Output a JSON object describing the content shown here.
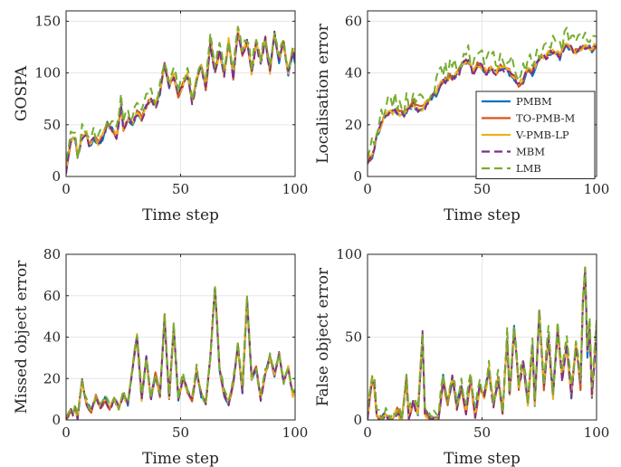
{
  "colors": {
    "PMBM": "#0072BD",
    "TO-PMB-M": "#D95319",
    "V-PMB-LP": "#EDB120",
    "MBM": "#7E2F8E",
    "LMB": "#77AC30",
    "grid": "#e6e6e6",
    "axis": "#262626"
  },
  "chart_data": [
    {
      "type": "line",
      "title": "",
      "xlabel": "Time step",
      "ylabel": "GOSPA",
      "xlim": [
        0,
        100
      ],
      "ylim": [
        0,
        160
      ],
      "xticks": [
        0,
        50,
        100
      ],
      "yticks": [
        0,
        50,
        100,
        150
      ],
      "grid": true,
      "anchors": [
        [
          0,
          5
        ],
        [
          2,
          33
        ],
        [
          4,
          38
        ],
        [
          5,
          18
        ],
        [
          7,
          38
        ],
        [
          9,
          40
        ],
        [
          10,
          28
        ],
        [
          12,
          36
        ],
        [
          14,
          32
        ],
        [
          16,
          38
        ],
        [
          18,
          50
        ],
        [
          20,
          45
        ],
        [
          22,
          38
        ],
        [
          24,
          68
        ],
        [
          25,
          45
        ],
        [
          27,
          55
        ],
        [
          29,
          50
        ],
        [
          31,
          62
        ],
        [
          33,
          55
        ],
        [
          35,
          68
        ],
        [
          37,
          75
        ],
        [
          39,
          68
        ],
        [
          41,
          80
        ],
        [
          43,
          108
        ],
        [
          45,
          88
        ],
        [
          47,
          98
        ],
        [
          49,
          78
        ],
        [
          51,
          88
        ],
        [
          53,
          98
        ],
        [
          55,
          70
        ],
        [
          57,
          92
        ],
        [
          59,
          108
        ],
        [
          61,
          85
        ],
        [
          63,
          128
        ],
        [
          65,
          100
        ],
        [
          67,
          120
        ],
        [
          69,
          98
        ],
        [
          71,
          130
        ],
        [
          73,
          95
        ],
        [
          75,
          140
        ],
        [
          77,
          118
        ],
        [
          79,
          130
        ],
        [
          81,
          100
        ],
        [
          83,
          128
        ],
        [
          85,
          110
        ],
        [
          87,
          132
        ],
        [
          89,
          100
        ],
        [
          91,
          138
        ],
        [
          93,
          112
        ],
        [
          95,
          128
        ],
        [
          97,
          100
        ],
        [
          99,
          120
        ],
        [
          100,
          112
        ]
      ],
      "series": [
        {
          "name": "PMBM",
          "color": "#0072BD",
          "dash": "solid",
          "seed": 1,
          "amp": 3.0,
          "bias": 0
        },
        {
          "name": "TO-PMB-M",
          "color": "#D95319",
          "dash": "solid",
          "seed": 2,
          "amp": 3.0,
          "bias": 1
        },
        {
          "name": "V-PMB-LP",
          "color": "#EDB120",
          "dash": "solid",
          "seed": 3,
          "amp": 3.0,
          "bias": 1
        },
        {
          "name": "MBM",
          "color": "#7E2F8E",
          "dash": "dashed",
          "seed": 4,
          "amp": 3.0,
          "bias": 0
        },
        {
          "name": "LMB",
          "color": "#77AC30",
          "dash": "dashed",
          "seed": 5,
          "amp": 7.0,
          "bias": 6
        }
      ]
    },
    {
      "type": "line",
      "title": "",
      "xlabel": "Time step",
      "ylabel": "Localisation error",
      "xlim": [
        0,
        100
      ],
      "ylim": [
        0,
        64
      ],
      "xticks": [
        0,
        50,
        100
      ],
      "yticks": [
        0,
        20,
        40,
        60
      ],
      "grid": true,
      "anchors": [
        [
          0,
          5
        ],
        [
          2,
          8
        ],
        [
          4,
          15
        ],
        [
          6,
          20
        ],
        [
          8,
          24
        ],
        [
          10,
          24
        ],
        [
          12,
          25
        ],
        [
          14,
          24
        ],
        [
          16,
          24
        ],
        [
          18,
          26
        ],
        [
          20,
          28
        ],
        [
          22,
          26
        ],
        [
          24,
          26
        ],
        [
          26,
          28
        ],
        [
          28,
          30
        ],
        [
          30,
          32
        ],
        [
          32,
          36
        ],
        [
          34,
          37
        ],
        [
          36,
          38
        ],
        [
          38,
          38
        ],
        [
          40,
          40
        ],
        [
          42,
          44
        ],
        [
          44,
          44
        ],
        [
          46,
          40
        ],
        [
          48,
          43
        ],
        [
          50,
          42
        ],
        [
          52,
          40
        ],
        [
          54,
          42
        ],
        [
          56,
          40
        ],
        [
          58,
          42
        ],
        [
          60,
          41
        ],
        [
          62,
          40
        ],
        [
          64,
          38
        ],
        [
          66,
          35
        ],
        [
          68,
          37
        ],
        [
          70,
          41
        ],
        [
          72,
          40
        ],
        [
          74,
          44
        ],
        [
          76,
          46
        ],
        [
          78,
          46
        ],
        [
          80,
          48
        ],
        [
          82,
          48
        ],
        [
          84,
          46
        ],
        [
          86,
          50
        ],
        [
          88,
          50
        ],
        [
          90,
          48
        ],
        [
          92,
          48
        ],
        [
          94,
          50
        ],
        [
          96,
          50
        ],
        [
          98,
          49
        ],
        [
          100,
          50
        ]
      ],
      "series": [
        {
          "name": "PMBM",
          "color": "#0072BD",
          "dash": "solid",
          "seed": 11,
          "amp": 1.3,
          "bias": 0
        },
        {
          "name": "TO-PMB-M",
          "color": "#D95319",
          "dash": "solid",
          "seed": 12,
          "amp": 1.3,
          "bias": 0.5
        },
        {
          "name": "V-PMB-LP",
          "color": "#EDB120",
          "dash": "solid",
          "seed": 13,
          "amp": 1.3,
          "bias": 0.5
        },
        {
          "name": "MBM",
          "color": "#7E2F8E",
          "dash": "dashed",
          "seed": 14,
          "amp": 1.3,
          "bias": 0
        },
        {
          "name": "LMB",
          "color": "#77AC30",
          "dash": "dashed",
          "seed": 15,
          "amp": 3.5,
          "bias": 4
        }
      ],
      "legend": {
        "position": "bottom-right",
        "entries": [
          "PMBM",
          "TO-PMB-M",
          "V-PMB-LP",
          "MBM",
          "LMB"
        ]
      }
    },
    {
      "type": "line",
      "title": "",
      "xlabel": "Time step",
      "ylabel": "Missed object error",
      "xlim": [
        0,
        100
      ],
      "ylim": [
        0,
        80
      ],
      "xticks": [
        0,
        50,
        100
      ],
      "yticks": [
        0,
        20,
        40,
        60,
        80
      ],
      "grid": true,
      "anchors": [
        [
          0,
          0
        ],
        [
          2,
          5
        ],
        [
          3,
          2
        ],
        [
          4,
          6
        ],
        [
          5,
          1
        ],
        [
          7,
          19
        ],
        [
          9,
          8
        ],
        [
          11,
          4
        ],
        [
          13,
          11
        ],
        [
          15,
          6
        ],
        [
          17,
          10
        ],
        [
          19,
          5
        ],
        [
          21,
          10
        ],
        [
          23,
          6
        ],
        [
          25,
          12
        ],
        [
          27,
          8
        ],
        [
          29,
          25
        ],
        [
          31,
          41
        ],
        [
          33,
          10
        ],
        [
          35,
          30
        ],
        [
          37,
          10
        ],
        [
          39,
          22
        ],
        [
          41,
          12
        ],
        [
          43,
          50
        ],
        [
          45,
          10
        ],
        [
          47,
          45
        ],
        [
          49,
          10
        ],
        [
          51,
          20
        ],
        [
          53,
          14
        ],
        [
          55,
          10
        ],
        [
          57,
          24
        ],
        [
          59,
          12
        ],
        [
          61,
          8
        ],
        [
          63,
          30
        ],
        [
          65,
          65
        ],
        [
          67,
          25
        ],
        [
          69,
          12
        ],
        [
          71,
          8
        ],
        [
          73,
          18
        ],
        [
          75,
          36
        ],
        [
          77,
          14
        ],
        [
          79,
          58
        ],
        [
          81,
          20
        ],
        [
          83,
          25
        ],
        [
          85,
          10
        ],
        [
          87,
          22
        ],
        [
          89,
          30
        ],
        [
          91,
          22
        ],
        [
          93,
          32
        ],
        [
          95,
          18
        ],
        [
          97,
          25
        ],
        [
          99,
          12
        ],
        [
          100,
          15
        ]
      ],
      "series": [
        {
          "name": "PMBM",
          "color": "#0072BD",
          "dash": "solid",
          "seed": 21,
          "amp": 1.2,
          "bias": 0
        },
        {
          "name": "TO-PMB-M",
          "color": "#D95319",
          "dash": "solid",
          "seed": 22,
          "amp": 1.2,
          "bias": 0
        },
        {
          "name": "V-PMB-LP",
          "color": "#EDB120",
          "dash": "solid",
          "seed": 23,
          "amp": 1.2,
          "bias": 0
        },
        {
          "name": "MBM",
          "color": "#7E2F8E",
          "dash": "dashed",
          "seed": 24,
          "amp": 1.2,
          "bias": 0
        },
        {
          "name": "LMB",
          "color": "#77AC30",
          "dash": "dashed",
          "seed": 25,
          "amp": 2.0,
          "bias": 1
        }
      ]
    },
    {
      "type": "line",
      "title": "",
      "xlabel": "Time step",
      "ylabel": "False object error",
      "xlim": [
        0,
        100
      ],
      "ylim": [
        0,
        100
      ],
      "xticks": [
        0,
        50,
        100
      ],
      "yticks": [
        0,
        50,
        100
      ],
      "grid": true,
      "anchors": [
        [
          0,
          0
        ],
        [
          1,
          15
        ],
        [
          2,
          25
        ],
        [
          3,
          20
        ],
        [
          4,
          5
        ],
        [
          5,
          0
        ],
        [
          7,
          2
        ],
        [
          9,
          0
        ],
        [
          11,
          0
        ],
        [
          13,
          5
        ],
        [
          15,
          0
        ],
        [
          17,
          25
        ],
        [
          18,
          2
        ],
        [
          20,
          10
        ],
        [
          22,
          5
        ],
        [
          24,
          52
        ],
        [
          25,
          5
        ],
        [
          27,
          0
        ],
        [
          29,
          0
        ],
        [
          31,
          0
        ],
        [
          33,
          25
        ],
        [
          35,
          10
        ],
        [
          37,
          25
        ],
        [
          39,
          8
        ],
        [
          41,
          20
        ],
        [
          43,
          5
        ],
        [
          45,
          25
        ],
        [
          47,
          2
        ],
        [
          49,
          20
        ],
        [
          51,
          15
        ],
        [
          53,
          30
        ],
        [
          55,
          8
        ],
        [
          57,
          25
        ],
        [
          59,
          5
        ],
        [
          61,
          50
        ],
        [
          62,
          15
        ],
        [
          64,
          55
        ],
        [
          66,
          20
        ],
        [
          68,
          35
        ],
        [
          70,
          10
        ],
        [
          72,
          45
        ],
        [
          73,
          10
        ],
        [
          75,
          65
        ],
        [
          77,
          20
        ],
        [
          79,
          50
        ],
        [
          81,
          15
        ],
        [
          83,
          55
        ],
        [
          85,
          25
        ],
        [
          87,
          45
        ],
        [
          89,
          15
        ],
        [
          91,
          45
        ],
        [
          93,
          20
        ],
        [
          94,
          70
        ],
        [
          95,
          90
        ],
        [
          96,
          40
        ],
        [
          97,
          55
        ],
        [
          98,
          15
        ],
        [
          100,
          55
        ]
      ],
      "series": [
        {
          "name": "PMBM",
          "color": "#0072BD",
          "dash": "solid",
          "seed": 31,
          "amp": 2.5,
          "bias": 0
        },
        {
          "name": "TO-PMB-M",
          "color": "#D95319",
          "dash": "solid",
          "seed": 32,
          "amp": 2.5,
          "bias": 0
        },
        {
          "name": "V-PMB-LP",
          "color": "#EDB120",
          "dash": "solid",
          "seed": 33,
          "amp": 2.5,
          "bias": 0
        },
        {
          "name": "MBM",
          "color": "#7E2F8E",
          "dash": "dashed",
          "seed": 34,
          "amp": 2.5,
          "bias": 0
        },
        {
          "name": "LMB",
          "color": "#77AC30",
          "dash": "dashed",
          "seed": 35,
          "amp": 4.0,
          "bias": 3
        }
      ]
    }
  ]
}
